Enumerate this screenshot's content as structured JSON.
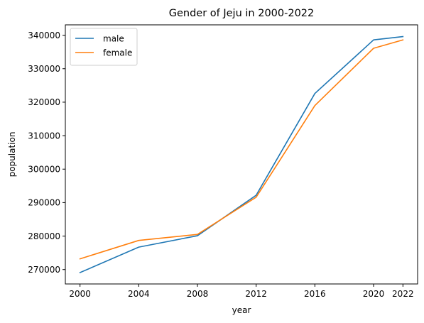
{
  "chart_data": {
    "type": "line",
    "title": "Gender of Jeju in 2000-2022",
    "xlabel": "year",
    "ylabel": "population",
    "x": [
      2000,
      2004,
      2008,
      2012,
      2016,
      2020,
      2022
    ],
    "xticks": [
      "2000",
      "2004",
      "2008",
      "2012",
      "2016",
      "2020",
      "2022"
    ],
    "yticks": [
      "270000",
      "280000",
      "290000",
      "300000",
      "310000",
      "320000",
      "330000",
      "340000"
    ],
    "xlim": [
      1999,
      2023
    ],
    "ylim": [
      265700,
      343100
    ],
    "grid": false,
    "legend_position": "upper-left",
    "series": [
      {
        "name": "male",
        "color": "#1f77b4",
        "values": [
          269100,
          276700,
          280100,
          292200,
          322600,
          338600,
          339600
        ]
      },
      {
        "name": "female",
        "color": "#ff7f0e",
        "values": [
          273200,
          278700,
          280500,
          291600,
          319000,
          336100,
          338600
        ]
      }
    ]
  }
}
